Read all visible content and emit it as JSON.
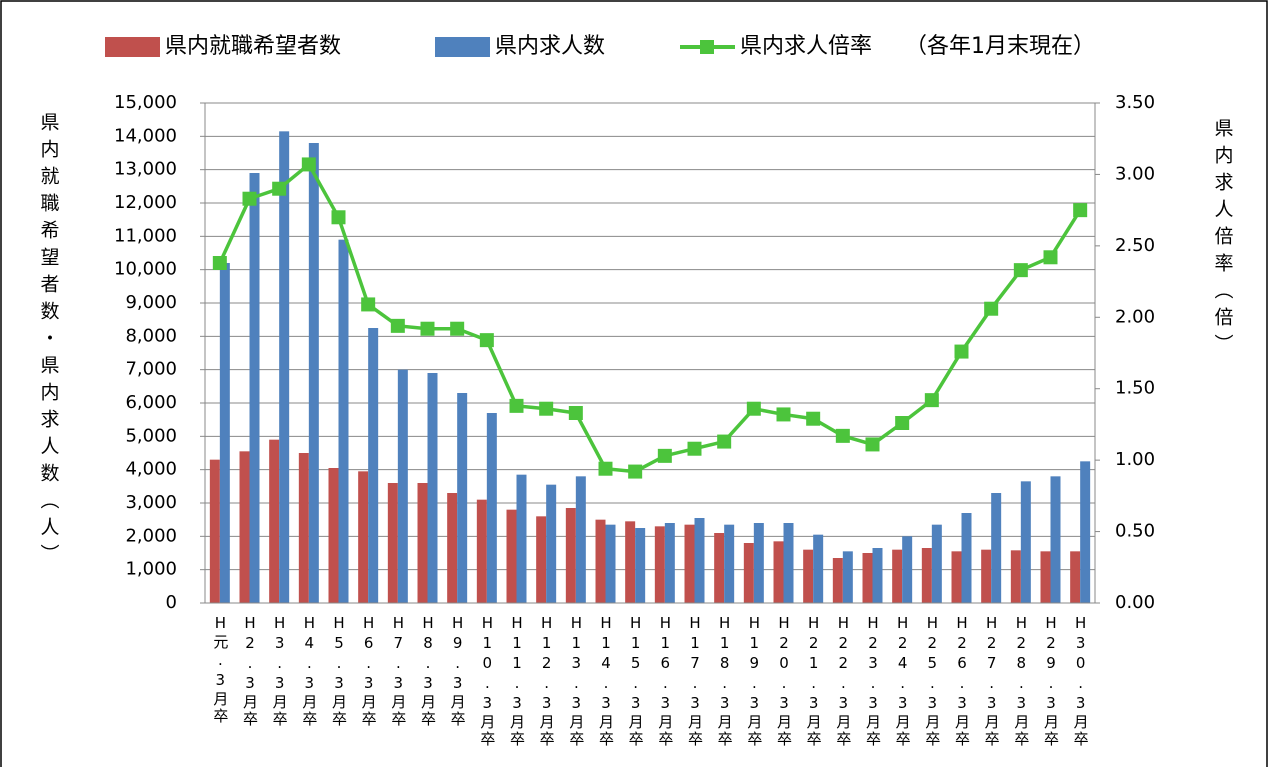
{
  "chart_data": {
    "type": "bar_line",
    "legend_note": "（各年1月末現在）",
    "ylabel": "県内就職希望者数・県内求人数（人）",
    "y2label": "県内求人倍率（倍）",
    "categories": [
      "H元.3月卒",
      "H2.3月卒",
      "H3.3月卒",
      "H4.3月卒",
      "H5.3月卒",
      "H6.3月卒",
      "H7.3月卒",
      "H8.3月卒",
      "H9.3月卒",
      "H10.3月卒",
      "H11.3月卒",
      "H12.3月卒",
      "H13.3月卒",
      "H14.3月卒",
      "H15.3月卒",
      "H16.3月卒",
      "H17.3月卒",
      "H18.3月卒",
      "H19.3月卒",
      "H20.3月卒",
      "H21.3月卒",
      "H22.3月卒",
      "H23.3月卒",
      "H24.3月卒",
      "H25.3月卒",
      "H26.3月卒",
      "H27.3月卒",
      "H28.3月卒",
      "H29.3月卒",
      "H30.3月卒"
    ],
    "series": [
      {
        "name": "県内就職希望者数",
        "type": "bar",
        "color": "#c0504d",
        "values": [
          4300,
          4550,
          4900,
          4500,
          4050,
          3950,
          3600,
          3600,
          3300,
          3100,
          2800,
          2600,
          2850,
          2500,
          2450,
          2300,
          2350,
          2100,
          1800,
          1850,
          1600,
          1350,
          1500,
          1600,
          1650,
          1550,
          1600,
          1580,
          1550,
          1550
        ]
      },
      {
        "name": "県内求人数",
        "type": "bar",
        "color": "#4f81bd",
        "values": [
          10200,
          12900,
          14150,
          13800,
          10900,
          8250,
          7000,
          6900,
          6300,
          5700,
          3850,
          3550,
          3800,
          2350,
          2250,
          2400,
          2550,
          2350,
          2400,
          2400,
          2050,
          1550,
          1650,
          2000,
          2350,
          2700,
          3300,
          3650,
          3800,
          4250
        ]
      },
      {
        "name": "県内求人倍率",
        "type": "line",
        "axis": "y2",
        "color": "#4cc43c",
        "values": [
          2.38,
          2.83,
          2.9,
          3.07,
          2.7,
          2.09,
          1.94,
          1.92,
          1.92,
          1.84,
          1.38,
          1.36,
          1.33,
          0.94,
          0.92,
          1.03,
          1.08,
          1.13,
          1.36,
          1.32,
          1.29,
          1.17,
          1.11,
          1.26,
          1.42,
          1.76,
          2.06,
          2.33,
          2.42,
          2.75
        ]
      }
    ],
    "ylim": [
      0,
      15000
    ],
    "yticks": [
      {
        "value": 0,
        "label": "0"
      },
      {
        "value": 1000,
        "label": "1,000"
      },
      {
        "value": 2000,
        "label": "2,000"
      },
      {
        "value": 3000,
        "label": "3,000"
      },
      {
        "value": 4000,
        "label": "4,000"
      },
      {
        "value": 5000,
        "label": "5,000"
      },
      {
        "value": 6000,
        "label": "6,000"
      },
      {
        "value": 7000,
        "label": "7,000"
      },
      {
        "value": 8000,
        "label": "8,000"
      },
      {
        "value": 9000,
        "label": "9,000"
      },
      {
        "value": 10000,
        "label": "10,000"
      },
      {
        "value": 11000,
        "label": "11,000"
      },
      {
        "value": 12000,
        "label": "12,000"
      },
      {
        "value": 13000,
        "label": "13,000"
      },
      {
        "value": 14000,
        "label": "14,000"
      },
      {
        "value": 15000,
        "label": "15,000"
      }
    ],
    "y2lim": [
      0,
      3.5
    ],
    "y2ticks": [
      {
        "value": 0,
        "label": "0.00"
      },
      {
        "value": 0.5,
        "label": "0.50"
      },
      {
        "value": 1,
        "label": "1.00"
      },
      {
        "value": 1.5,
        "label": "1.50"
      },
      {
        "value": 2,
        "label": "2.00"
      },
      {
        "value": 2.5,
        "label": "2.50"
      },
      {
        "value": 3,
        "label": "3.00"
      },
      {
        "value": 3.5,
        "label": "3.50"
      }
    ],
    "grid": true
  }
}
